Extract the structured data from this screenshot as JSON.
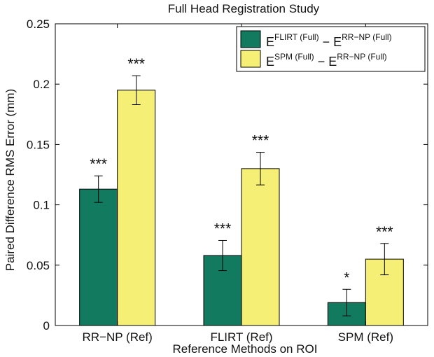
{
  "chart_data": {
    "type": "bar",
    "title": "Full Head Registration Study",
    "xlabel": "Reference Methods on ROI",
    "ylabel": "Paired Difference RMS Error (mm)",
    "categories": [
      "RR−NP (Ref)",
      "FLIRT (Ref)",
      "SPM (Ref)"
    ],
    "ylim": [
      0,
      0.25
    ],
    "yticks": [
      0,
      0.05,
      0.1,
      0.15,
      0.2,
      0.25
    ],
    "ytick_labels": [
      "0",
      "0.05",
      "0.1",
      "0.15",
      "0.2",
      "0.25"
    ],
    "grid": false,
    "legend_position": "top-right",
    "series": [
      {
        "legend": {
          "base": "E",
          "sup1": "FLIRT (Full)",
          "mid": " − E",
          "sup2": "RR−NP (Full)"
        },
        "color": "#127a5e",
        "values": [
          0.113,
          0.058,
          0.019
        ],
        "errors": [
          0.011,
          0.0125,
          0.011
        ],
        "annotations": [
          "***",
          "***",
          "*"
        ]
      },
      {
        "legend": {
          "base": "E",
          "sup1": "SPM (Full)",
          "mid": " − E",
          "sup2": "RR−NP (Full)"
        },
        "color": "#f5f075",
        "values": [
          0.195,
          0.13,
          0.055
        ],
        "errors": [
          0.012,
          0.0135,
          0.013
        ],
        "annotations": [
          "***",
          "***",
          "***"
        ]
      }
    ]
  }
}
